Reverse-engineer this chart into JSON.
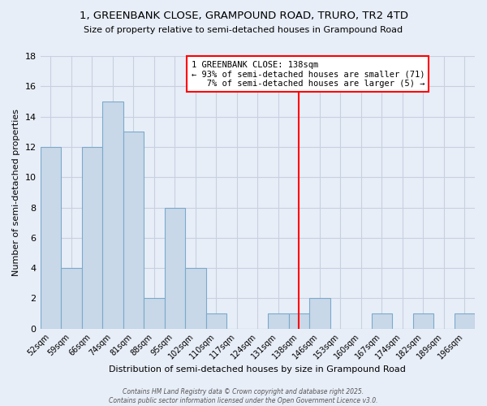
{
  "title": "1, GREENBANK CLOSE, GRAMPOUND ROAD, TRURO, TR2 4TD",
  "subtitle": "Size of property relative to semi-detached houses in Grampound Road",
  "xlabel": "Distribution of semi-detached houses by size in Grampound Road",
  "ylabel": "Number of semi-detached properties",
  "categories": [
    "52sqm",
    "59sqm",
    "66sqm",
    "74sqm",
    "81sqm",
    "88sqm",
    "95sqm",
    "102sqm",
    "110sqm",
    "117sqm",
    "124sqm",
    "131sqm",
    "138sqm",
    "146sqm",
    "153sqm",
    "160sqm",
    "167sqm",
    "174sqm",
    "182sqm",
    "189sqm",
    "196sqm"
  ],
  "values": [
    12,
    4,
    12,
    15,
    13,
    2,
    8,
    4,
    1,
    0,
    0,
    1,
    1,
    2,
    0,
    0,
    1,
    0,
    1,
    0,
    1
  ],
  "bar_color": "#c8d8e8",
  "bar_edge_color": "#7aaacc",
  "property_index": 12,
  "vline_color": "red",
  "annotation_text": "1 GREENBANK CLOSE: 138sqm\n← 93% of semi-detached houses are smaller (71)\n   7% of semi-detached houses are larger (5) →",
  "annotation_box_color": "white",
  "annotation_box_edge": "red",
  "ylim": [
    0,
    18
  ],
  "yticks": [
    0,
    2,
    4,
    6,
    8,
    10,
    12,
    14,
    16,
    18
  ],
  "grid_color": "#c8d0e0",
  "background_color": "#e8eef8",
  "footer": "Contains HM Land Registry data © Crown copyright and database right 2025.\nContains public sector information licensed under the Open Government Licence v3.0."
}
